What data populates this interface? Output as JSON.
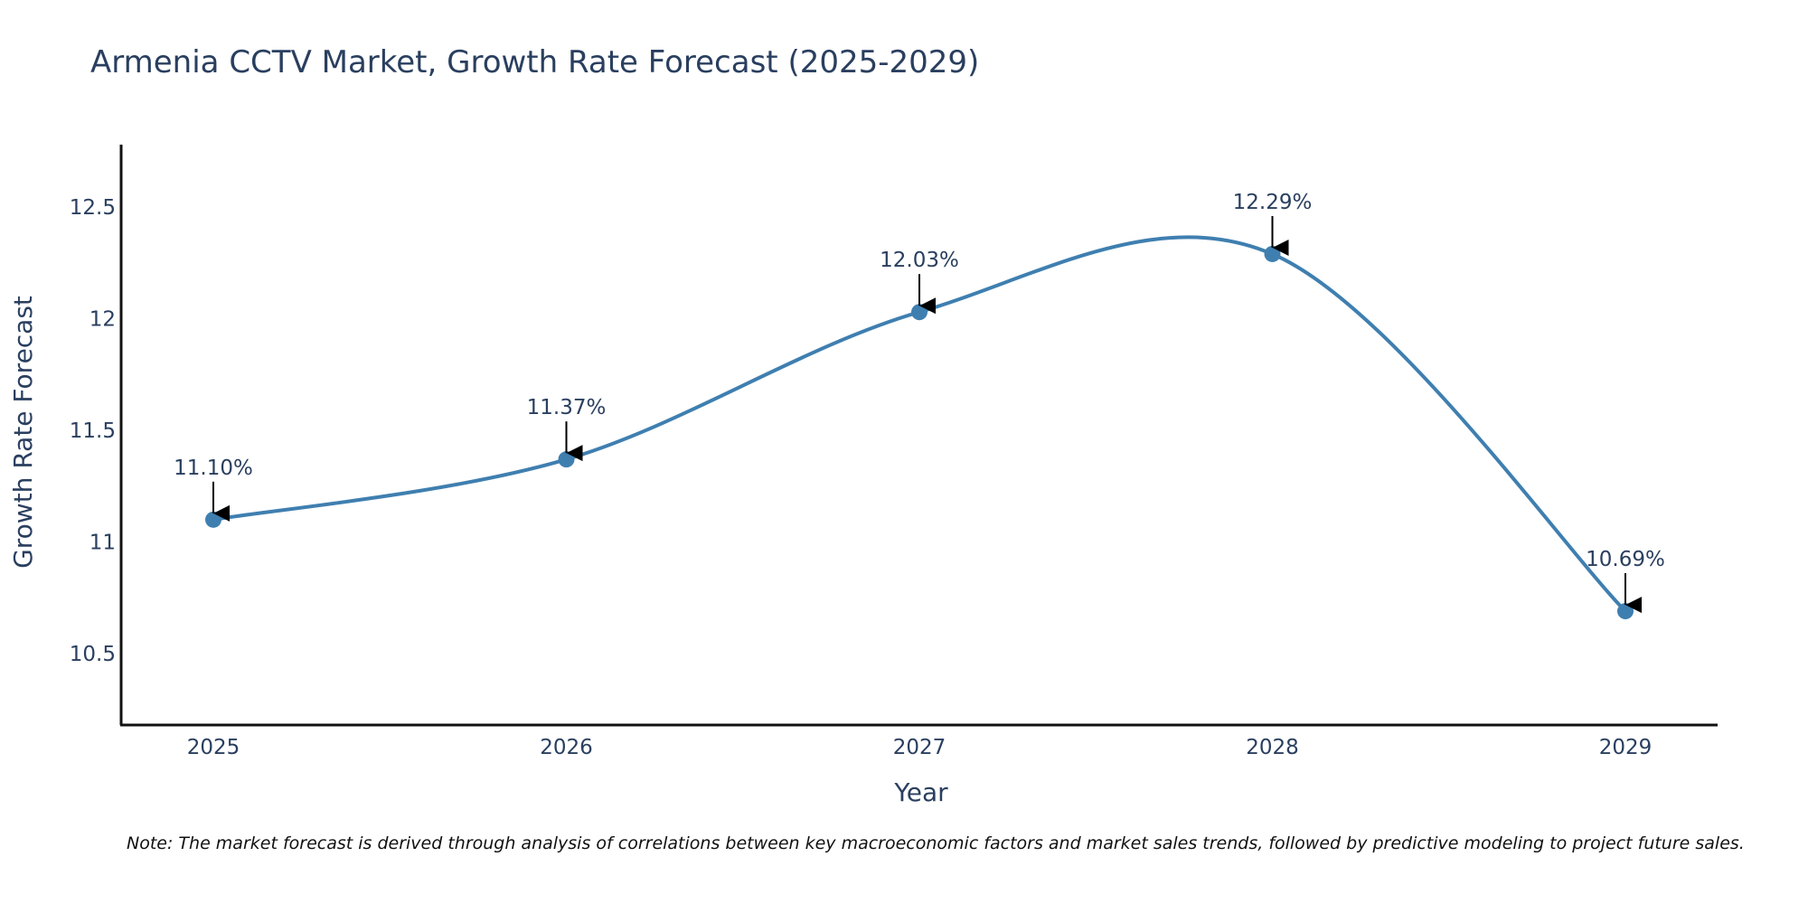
{
  "colors": {
    "line": "#3f7fb0",
    "marker": "#3f7fb0",
    "axis": "#111111",
    "text": "#2a3f5f",
    "arrow": "#000000"
  },
  "chart_data": {
    "type": "line",
    "title": "Armenia CCTV Market, Growth Rate Forecast (2025-2029)",
    "xlabel": "Year",
    "ylabel": "Growth Rate Forecast",
    "categories": [
      "2025",
      "2026",
      "2027",
      "2028",
      "2029"
    ],
    "values": [
      11.1,
      11.37,
      12.03,
      12.29,
      10.69
    ],
    "data_labels": [
      "11.10%",
      "11.37%",
      "12.03%",
      "12.29%",
      "10.69%"
    ],
    "yticks": [
      10.5,
      11,
      11.5,
      12,
      12.5
    ],
    "ytick_labels": [
      "10.5",
      "11",
      "11.5",
      "12",
      "12.5"
    ],
    "ylim": [
      10.18,
      12.78
    ],
    "grid": false,
    "line_shape": "spline",
    "note": "Note: The market forecast is derived through analysis of correlations between key macroeconomic factors and market sales trends, followed by predictive modeling to project future sales."
  }
}
